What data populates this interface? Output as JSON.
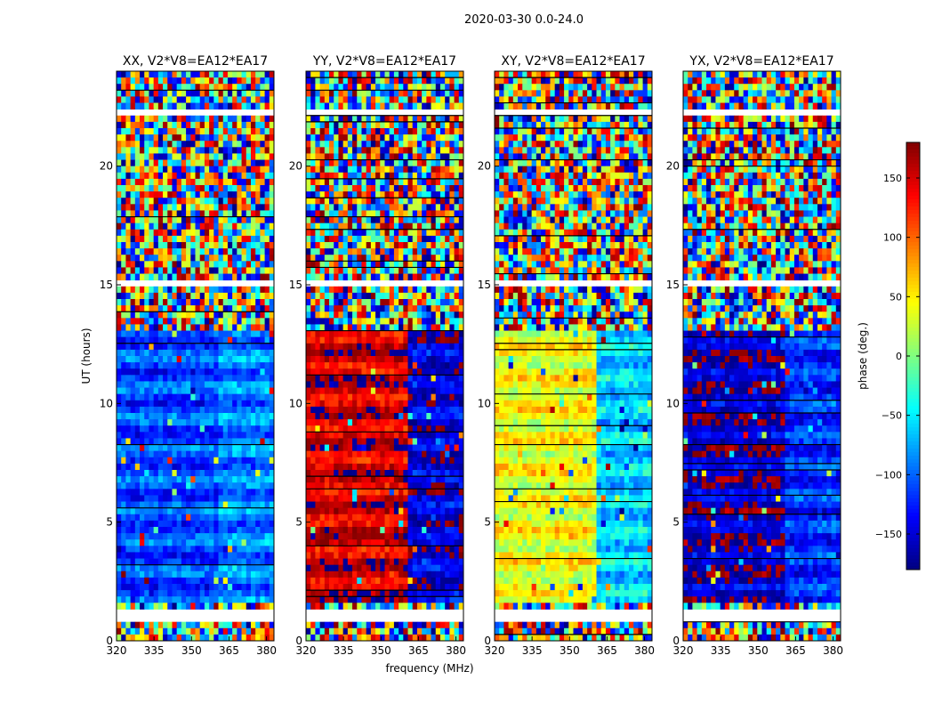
{
  "chart_data": {
    "type": "heatmap",
    "title": "2020-03-30 0.0-24.0",
    "xlabel": "frequency (MHz)",
    "ylabel": "UT (hours)",
    "xlim": [
      320,
      383
    ],
    "ylim": [
      0,
      24
    ],
    "xticks": [
      320,
      335,
      350,
      365,
      380
    ],
    "yticks": [
      0,
      5,
      10,
      15,
      20
    ],
    "colorbar": {
      "label": "phase (deg.)",
      "range": [
        -180,
        180
      ],
      "ticks": [
        -150,
        -100,
        -50,
        0,
        50,
        100,
        150
      ],
      "tick_labels": [
        "−150",
        "−100",
        "−50",
        "0",
        "50",
        "100",
        "150"
      ],
      "colormap": "jet"
    },
    "panels": [
      {
        "title": "XX, V2*V8=EA12*EA17",
        "pol": "XX",
        "low_band_phase": -110,
        "high_band_phase": -90
      },
      {
        "title": "YY, V2*V8=EA12*EA17",
        "pol": "YY",
        "low_band_phase": 150,
        "high_band_phase": -150
      },
      {
        "title": "XY, V2*V8=EA12*EA17",
        "pol": "XY",
        "low_band_phase": 40,
        "high_band_phase": -60
      },
      {
        "title": "YX, V2*V8=EA12*EA17",
        "pol": "YX",
        "low_band_phase": -160,
        "high_band_phase": -120
      }
    ],
    "flagged_ut_ranges_hours": [
      [
        0.7,
        1.2
      ],
      [
        15.0,
        15.1
      ],
      [
        22.2,
        22.4
      ]
    ],
    "band_edge_mhz": 361
  }
}
